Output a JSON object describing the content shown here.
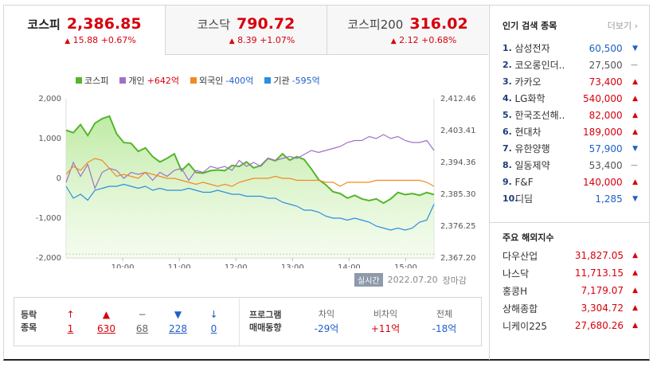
{
  "tabs": [
    {
      "name": "코스피",
      "price": "2,386.85",
      "change": "15.88 +0.67%",
      "dir": "up"
    },
    {
      "name": "코스닥",
      "price": "790.72",
      "change": "8.39 +1.07%",
      "dir": "up"
    },
    {
      "name": "코스피200",
      "price": "316.02",
      "change": "2.12 +0.68%",
      "dir": "up"
    }
  ],
  "legend": {
    "kospi": "코스피",
    "individual": "개인",
    "individual_val": "+642억",
    "foreign": "외국인",
    "foreign_val": "-400억",
    "inst": "기관",
    "inst_val": "-595억"
  },
  "colors": {
    "kospi": "#55b52c",
    "individual": "#a070c8",
    "foreign": "#f08a24",
    "inst": "#2a8fe0",
    "up": "#d8000c",
    "down": "#1e5fc8"
  },
  "chart_data": {
    "type": "line",
    "x_ticks": [
      "10:00",
      "11:00",
      "12:00",
      "13:00",
      "14:00",
      "15:00"
    ],
    "y_left_ticks": [
      "2,000",
      "1,000",
      "0",
      "-1,000",
      "-2,000"
    ],
    "y_right_ticks": [
      "2,412.46",
      "2,403.41",
      "2,394.36",
      "2,385.30",
      "2,376.25",
      "2,367.20"
    ],
    "y_left_range": [
      -2000,
      2000
    ],
    "y_right_range": [
      2367.2,
      2412.46
    ],
    "series": [
      {
        "name": "코스피",
        "axis": "right",
        "values": [
          2403.5,
          2402.8,
          2405.1,
          2402.0,
          2405.5,
          2406.8,
          2407.5,
          2402.5,
          2400.0,
          2399.8,
          2397.5,
          2398.5,
          2396.0,
          2394.5,
          2395.5,
          2396.8,
          2392.0,
          2394.0,
          2391.5,
          2391.3,
          2392.0,
          2392.2,
          2392.0,
          2393.5,
          2393.2,
          2394.5,
          2392.8,
          2393.5,
          2395.5,
          2394.8,
          2396.8,
          2395.0,
          2396.0,
          2395.2,
          2392.5,
          2389.5,
          2388.0,
          2386.0,
          2385.5,
          2384.2,
          2385.0,
          2384.0,
          2383.5,
          2384.0,
          2382.8,
          2384.0,
          2385.8,
          2385.2,
          2385.5,
          2385.0,
          2385.8,
          2385.2
        ]
      },
      {
        "name": "개인",
        "axis": "left",
        "values": [
          -100,
          400,
          50,
          350,
          -250,
          150,
          250,
          200,
          0,
          150,
          100,
          150,
          -50,
          150,
          50,
          200,
          250,
          -50,
          200,
          150,
          300,
          250,
          300,
          200,
          450,
          300,
          400,
          300,
          500,
          450,
          500,
          550,
          500,
          600,
          700,
          650,
          700,
          750,
          800,
          900,
          950,
          950,
          1050,
          1000,
          1100,
          1000,
          1050,
          950,
          900,
          900,
          950,
          700
        ]
      },
      {
        "name": "외국인",
        "axis": "left",
        "values": [
          100,
          300,
          200,
          400,
          500,
          450,
          250,
          50,
          100,
          50,
          0,
          150,
          100,
          50,
          0,
          0,
          -50,
          -100,
          -150,
          -100,
          -150,
          -200,
          -150,
          -200,
          -100,
          -50,
          0,
          0,
          0,
          50,
          0,
          0,
          -50,
          -50,
          -50,
          -50,
          -100,
          -100,
          -200,
          -100,
          -100,
          -100,
          -100,
          -50,
          -50,
          -50,
          -50,
          -50,
          -50,
          -50,
          -100,
          -200
        ]
      },
      {
        "name": "기관",
        "axis": "left",
        "values": [
          -200,
          -500,
          -400,
          -550,
          -300,
          -250,
          -200,
          -200,
          -150,
          -200,
          -250,
          -200,
          -300,
          -250,
          -300,
          -300,
          -300,
          -250,
          -300,
          -350,
          -350,
          -300,
          -350,
          -400,
          -400,
          -450,
          -450,
          -450,
          -500,
          -500,
          -600,
          -650,
          -700,
          -800,
          -800,
          -850,
          -950,
          -1000,
          -1000,
          -1050,
          -1000,
          -1050,
          -1100,
          -1200,
          -1250,
          -1300,
          -1250,
          -1300,
          -1250,
          -1100,
          -1050,
          -650
        ]
      }
    ]
  },
  "meta": {
    "realtime": "실시간",
    "date": "2022.07.20",
    "status": "장마감"
  },
  "updown": {
    "label1": "등락",
    "label2": "종목",
    "items": [
      {
        "icon": "↑",
        "count": "1",
        "cls": "red"
      },
      {
        "icon": "▲",
        "count": "630",
        "cls": "red"
      },
      {
        "icon": "−",
        "count": "68",
        "cls": "gray"
      },
      {
        "icon": "▼",
        "count": "228",
        "cls": "blue"
      },
      {
        "icon": "↓",
        "count": "0",
        "cls": "blue"
      }
    ]
  },
  "program": {
    "label1": "프로그램",
    "label2": "매매동향",
    "cols": [
      {
        "head": "차익",
        "val": "-29억",
        "cls": "blue"
      },
      {
        "head": "비차익",
        "val": "+11억",
        "cls": "red"
      },
      {
        "head": "전체",
        "val": "-18억",
        "cls": "blue"
      }
    ]
  },
  "popular": {
    "title": "인기 검색 종목",
    "more": "더보기",
    "items": [
      {
        "rank": "1.",
        "name": "삼성전자",
        "price": "60,500",
        "dir": "down"
      },
      {
        "rank": "2.",
        "name": "코오롱인더..",
        "price": "27,500",
        "dir": "flat"
      },
      {
        "rank": "3.",
        "name": "카카오",
        "price": "73,400",
        "dir": "up"
      },
      {
        "rank": "4.",
        "name": "LG화학",
        "price": "540,000",
        "dir": "up"
      },
      {
        "rank": "5.",
        "name": "한국조선해..",
        "price": "82,000",
        "dir": "up"
      },
      {
        "rank": "6.",
        "name": "현대차",
        "price": "189,000",
        "dir": "up"
      },
      {
        "rank": "7.",
        "name": "유한양행",
        "price": "57,900",
        "dir": "down"
      },
      {
        "rank": "8.",
        "name": "일동제약",
        "price": "53,400",
        "dir": "flat"
      },
      {
        "rank": "9.",
        "name": "F&F",
        "price": "140,000",
        "dir": "up"
      },
      {
        "rank": "10.",
        "name": "디딤",
        "price": "1,285",
        "dir": "down"
      }
    ]
  },
  "overseas": {
    "title": "주요 해외지수",
    "items": [
      {
        "name": "다우산업",
        "value": "31,827.05"
      },
      {
        "name": "나스닥",
        "value": "11,713.15"
      },
      {
        "name": "홍콩H",
        "value": "7,179.07"
      },
      {
        "name": "상해종합",
        "value": "3,304.72"
      },
      {
        "name": "니케이225",
        "value": "27,680.26"
      }
    ]
  }
}
